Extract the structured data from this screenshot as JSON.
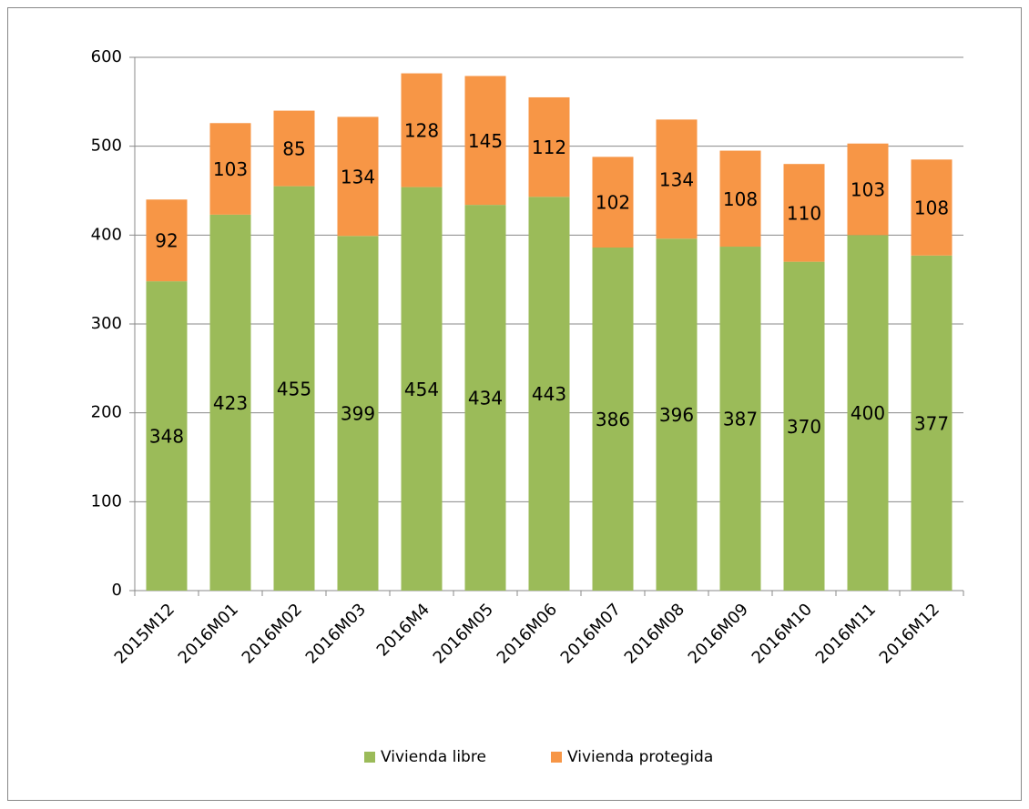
{
  "chart_data": {
    "type": "bar",
    "stacked": true,
    "categories": [
      "2015M12",
      "2016M01",
      "2016M02",
      "2016M03",
      "2016M4",
      "2016M05",
      "2016M06",
      "2016M07",
      "2016M08",
      "2016M09",
      "2016M10",
      "2016M11",
      "2016M12"
    ],
    "series": [
      {
        "name": "Vivienda libre",
        "color": "#9bbb59",
        "values": [
          348,
          423,
          455,
          399,
          454,
          434,
          443,
          386,
          396,
          387,
          370,
          400,
          377
        ]
      },
      {
        "name": "Vivienda protegida",
        "color": "#f79646",
        "values": [
          92,
          103,
          85,
          134,
          128,
          145,
          112,
          102,
          134,
          108,
          110,
          103,
          108
        ]
      }
    ],
    "ylim": [
      0,
      600
    ],
    "yticks": [
      0,
      100,
      200,
      300,
      400,
      500,
      600
    ],
    "grid": true,
    "legend": "bottom"
  }
}
